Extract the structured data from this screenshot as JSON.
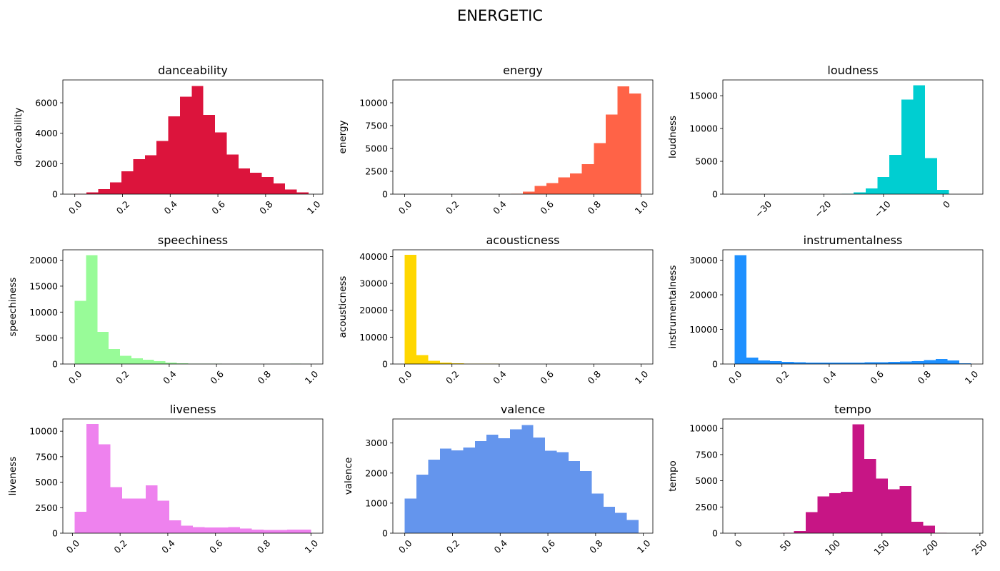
{
  "figure": {
    "title": "ENERGETIC"
  },
  "chart_data": [
    {
      "type": "histogram",
      "title": "danceability",
      "xlabel": "",
      "ylabel": "danceability",
      "color": "#dc143c",
      "xlim": [
        -0.05,
        1.04
      ],
      "ylim": [
        0,
        7500
      ],
      "xticks": [
        0.0,
        0.2,
        0.4,
        0.6,
        0.8,
        1.0
      ],
      "xtick_labels": [
        "0.0",
        "0.2",
        "0.4",
        "0.6",
        "0.8",
        "1.0"
      ],
      "yticks": [
        0,
        2000,
        4000,
        6000
      ],
      "ytick_labels": [
        "0",
        "2000",
        "4000",
        "6000"
      ],
      "bin_edges": [
        0.0,
        0.049,
        0.098,
        0.147,
        0.196,
        0.245,
        0.294,
        0.343,
        0.392,
        0.441,
        0.49,
        0.539,
        0.588,
        0.637,
        0.686,
        0.735,
        0.784,
        0.833,
        0.882,
        0.931,
        0.98
      ],
      "counts": [
        20,
        120,
        330,
        780,
        1500,
        2300,
        2550,
        3500,
        5100,
        6400,
        7100,
        5200,
        4050,
        2600,
        1680,
        1400,
        1130,
        700,
        300,
        120
      ]
    },
    {
      "type": "histogram",
      "title": "energy",
      "xlabel": "",
      "ylabel": "energy",
      "color": "#ff6347",
      "xlim": [
        -0.05,
        1.05
      ],
      "ylim": [
        0,
        12500
      ],
      "xticks": [
        0.0,
        0.2,
        0.4,
        0.6,
        0.8,
        1.0
      ],
      "xtick_labels": [
        "0.0",
        "0.2",
        "0.4",
        "0.6",
        "0.8",
        "1.0"
      ],
      "yticks": [
        0,
        2500,
        5000,
        7500,
        10000
      ],
      "ytick_labels": [
        "0",
        "2500",
        "5000",
        "7500",
        "10000"
      ],
      "bin_edges": [
        0.0,
        0.05,
        0.1,
        0.15,
        0.2,
        0.25,
        0.3,
        0.35,
        0.4,
        0.45,
        0.5,
        0.55,
        0.6,
        0.65,
        0.7,
        0.75,
        0.8,
        0.85,
        0.9,
        0.95,
        1.0
      ],
      "counts": [
        0,
        0,
        0,
        0,
        0,
        0,
        0,
        0,
        10,
        40,
        280,
        880,
        1200,
        1850,
        2250,
        3300,
        5600,
        8700,
        11800,
        11000
      ]
    },
    {
      "type": "histogram",
      "title": "loudness",
      "xlabel": "",
      "ylabel": "loudness",
      "color": "#00ced1",
      "xlim": [
        -37,
        6.7
      ],
      "ylim": [
        0,
        17400
      ],
      "xticks": [
        -30,
        -20,
        -10,
        0
      ],
      "xtick_labels": [
        "−30",
        "−20",
        "−10",
        "0"
      ],
      "yticks": [
        0,
        5000,
        10000,
        15000
      ],
      "ytick_labels": [
        "0",
        "5000",
        "10000",
        "15000"
      ],
      "bin_edges": [
        -35.0,
        -33.0,
        -31.0,
        -29.0,
        -27.0,
        -25.0,
        -23.0,
        -21.0,
        -19.0,
        -17.0,
        -15.0,
        -13.0,
        -11.0,
        -9.0,
        -7.0,
        -5.0,
        -3.0,
        -1.0,
        1.0,
        3.0,
        5.0
      ],
      "counts": [
        0,
        0,
        0,
        0,
        0,
        0,
        0,
        0,
        10,
        80,
        280,
        850,
        2600,
        6000,
        14400,
        16600,
        5500,
        650,
        20,
        0
      ]
    },
    {
      "type": "histogram",
      "title": "speechiness",
      "xlabel": "",
      "ylabel": "speechiness",
      "color": "#98fb98",
      "xlim": [
        -0.05,
        1.05
      ],
      "ylim": [
        0,
        22000
      ],
      "xticks": [
        0.0,
        0.2,
        0.4,
        0.6,
        0.8,
        1.0
      ],
      "xtick_labels": [
        "0.0",
        "0.2",
        "0.4",
        "0.6",
        "0.8",
        "1.0"
      ],
      "yticks": [
        0,
        5000,
        10000,
        15000,
        20000
      ],
      "ytick_labels": [
        "0",
        "5000",
        "10000",
        "15000",
        "20000"
      ],
      "bin_edges": [
        0.0,
        0.048,
        0.096,
        0.144,
        0.192,
        0.24,
        0.288,
        0.336,
        0.384,
        0.432,
        0.48,
        0.528,
        0.576,
        0.624,
        0.672,
        0.72,
        0.768,
        0.816,
        0.864,
        0.912,
        0.96
      ],
      "counts": [
        12200,
        21000,
        6200,
        2900,
        1600,
        1100,
        800,
        560,
        300,
        170,
        100,
        60,
        40,
        30,
        20,
        15,
        10,
        10,
        10,
        60
      ]
    },
    {
      "type": "histogram",
      "title": "acousticness",
      "xlabel": "",
      "ylabel": "acousticness",
      "color": "#ffd700",
      "xlim": [
        -0.05,
        1.05
      ],
      "ylim": [
        0,
        42500
      ],
      "xticks": [
        0.0,
        0.2,
        0.4,
        0.6,
        0.8,
        1.0
      ],
      "xtick_labels": [
        "0.0",
        "0.2",
        "0.4",
        "0.6",
        "0.8",
        "1.0"
      ],
      "yticks": [
        0,
        10000,
        20000,
        30000,
        40000
      ],
      "ytick_labels": [
        "0",
        "10000",
        "20000",
        "30000",
        "40000"
      ],
      "bin_edges": [
        0.0,
        0.05,
        0.1,
        0.15,
        0.2,
        0.25,
        0.3,
        0.35,
        0.4,
        0.45,
        0.5,
        0.55,
        0.6,
        0.65,
        0.7,
        0.75,
        0.8,
        0.85,
        0.9,
        0.95,
        1.0
      ],
      "counts": [
        40700,
        3300,
        1200,
        520,
        310,
        190,
        120,
        80,
        60,
        40,
        30,
        20,
        20,
        15,
        10,
        10,
        5,
        5,
        5,
        5
      ]
    },
    {
      "type": "histogram",
      "title": "instrumentalness",
      "xlabel": "",
      "ylabel": "instrumentalness",
      "color": "#1e90ff",
      "xlim": [
        -0.05,
        1.05
      ],
      "ylim": [
        0,
        33000
      ],
      "xticks": [
        0.0,
        0.2,
        0.4,
        0.6,
        0.8,
        1.0
      ],
      "xtick_labels": [
        "0.0",
        "0.2",
        "0.4",
        "0.6",
        "0.8",
        "1.0"
      ],
      "yticks": [
        0,
        10000,
        20000,
        30000
      ],
      "ytick_labels": [
        "0",
        "10000",
        "20000",
        "30000"
      ],
      "bin_edges": [
        0.0,
        0.05,
        0.1,
        0.15,
        0.2,
        0.25,
        0.3,
        0.35,
        0.4,
        0.45,
        0.5,
        0.55,
        0.6,
        0.65,
        0.7,
        0.75,
        0.8,
        0.85,
        0.9,
        0.95,
        1.0
      ],
      "counts": [
        31500,
        1900,
        1000,
        800,
        650,
        500,
        430,
        420,
        430,
        440,
        450,
        480,
        560,
        620,
        700,
        780,
        1100,
        1400,
        1000,
        200
      ]
    },
    {
      "type": "histogram",
      "title": "liveness",
      "xlabel": "",
      "ylabel": "liveness",
      "color": "#ee82ee",
      "xlim": [
        -0.04,
        1.05
      ],
      "ylim": [
        0,
        11200
      ],
      "xticks": [
        0.0,
        0.2,
        0.4,
        0.6,
        0.8,
        1.0
      ],
      "xtick_labels": [
        "0.0",
        "0.2",
        "0.4",
        "0.6",
        "0.8",
        "1.0"
      ],
      "yticks": [
        0,
        2500,
        5000,
        7500,
        10000
      ],
      "ytick_labels": [
        "0",
        "2500",
        "5000",
        "7500",
        "10000"
      ],
      "bin_edges": [
        0.01,
        0.0595,
        0.109,
        0.1585,
        0.208,
        0.2575,
        0.307,
        0.3565,
        0.406,
        0.4555,
        0.505,
        0.5545,
        0.604,
        0.6535,
        0.703,
        0.7525,
        0.802,
        0.8515,
        0.901,
        0.9505,
        1.0
      ],
      "counts": [
        2100,
        10700,
        8700,
        4500,
        3400,
        3400,
        4700,
        3200,
        1250,
        750,
        600,
        550,
        550,
        600,
        450,
        350,
        330,
        330,
        350,
        350
      ]
    },
    {
      "type": "histogram",
      "title": "valence",
      "xlabel": "",
      "ylabel": "valence",
      "color": "#6495ed",
      "xlim": [
        -0.05,
        1.04
      ],
      "ylim": [
        0,
        3800
      ],
      "xticks": [
        0.0,
        0.2,
        0.4,
        0.6,
        0.8,
        1.0
      ],
      "xtick_labels": [
        "0.0",
        "0.2",
        "0.4",
        "0.6",
        "0.8",
        "1.0"
      ],
      "yticks": [
        0,
        1000,
        2000,
        3000
      ],
      "ytick_labels": [
        "0",
        "1000",
        "2000",
        "3000"
      ],
      "bin_edges": [
        0.0,
        0.049,
        0.098,
        0.147,
        0.196,
        0.245,
        0.294,
        0.343,
        0.392,
        0.441,
        0.49,
        0.539,
        0.588,
        0.637,
        0.686,
        0.735,
        0.784,
        0.833,
        0.882,
        0.931,
        0.98
      ],
      "counts": [
        1150,
        1950,
        2450,
        2820,
        2760,
        2850,
        3060,
        3280,
        3160,
        3460,
        3600,
        3180,
        2740,
        2700,
        2400,
        2070,
        1320,
        880,
        680,
        440
      ]
    },
    {
      "type": "histogram",
      "title": "tempo",
      "xlabel": "",
      "ylabel": "tempo",
      "color": "#c71585",
      "xlim": [
        -12.5,
        253
      ],
      "ylim": [
        0,
        10900
      ],
      "xticks": [
        0,
        50,
        100,
        150,
        200,
        250
      ],
      "xtick_labels": [
        "0",
        "50",
        "100",
        "150",
        "200",
        "250"
      ],
      "yticks": [
        0,
        2500,
        5000,
        7500,
        10000
      ],
      "ytick_labels": [
        "0",
        "2500",
        "5000",
        "7500",
        "10000"
      ],
      "bin_edges": [
        0.0,
        12.0,
        24.0,
        36.0,
        48.0,
        60.0,
        72.0,
        84.0,
        96.0,
        108.0,
        120.0,
        132.0,
        144.0,
        156.0,
        168.0,
        180.0,
        192.0,
        204.0,
        216.0,
        228.0,
        240.0
      ],
      "counts": [
        0,
        0,
        0,
        0,
        40,
        200,
        2000,
        3500,
        3800,
        3950,
        10400,
        7100,
        5200,
        4200,
        4500,
        1100,
        700,
        50,
        0,
        0
      ]
    }
  ]
}
